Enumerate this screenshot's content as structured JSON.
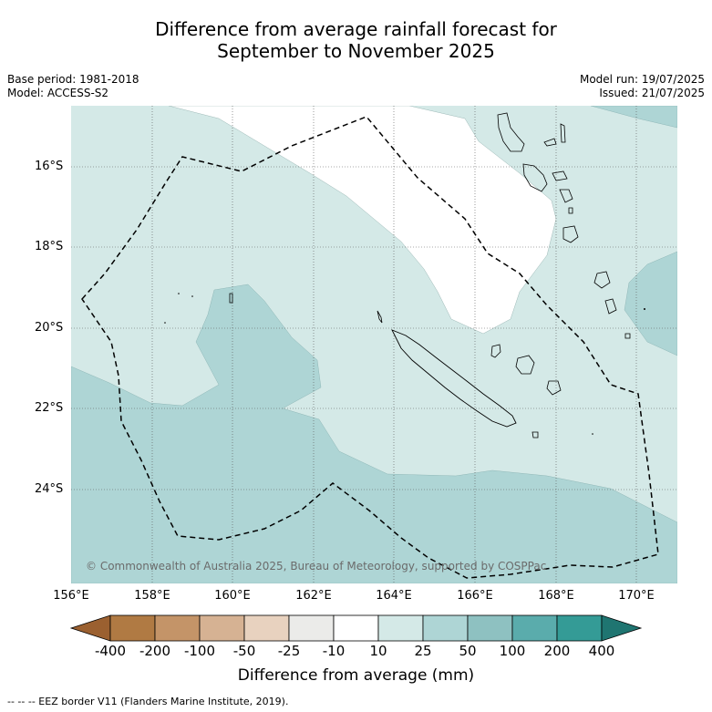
{
  "title_line1": "Difference from average rainfall forecast for",
  "title_line2": "September to November 2025",
  "base_period": "Base period: 1981-2018",
  "model": "Model: ACCESS-S2",
  "model_run": "Model run: 19/07/2025",
  "issued": "Issued: 21/07/2025",
  "copyright": "© Commonwealth of Australia 2025, Bureau of Meteorology, supported by COSPPac",
  "lat_labels": [
    "16°S",
    "18°S",
    "20°S",
    "22°S",
    "24°S"
  ],
  "lon_labels": [
    "156°E",
    "158°E",
    "160°E",
    "162°E",
    "164°E",
    "166°E",
    "168°E",
    "170°E"
  ],
  "colorbar": {
    "title": "Difference from average (mm)",
    "tick_labels": [
      "-400",
      "-200",
      "-100",
      "-50",
      "-25",
      "-10",
      "10",
      "25",
      "50",
      "100",
      "200",
      "400"
    ],
    "colors": [
      "#9b6030",
      "#b07a43",
      "#c49468",
      "#d6b293",
      "#e8d2bf",
      "#ebebe9",
      "#ffffff",
      "#d4e9e7",
      "#aed5d5",
      "#8ec1c1",
      "#5aacac",
      "#349b96",
      "#1f7571"
    ]
  },
  "footnote": "--  --  -- EEZ border V11 (Flanders Marine Institute, 2019)."
}
